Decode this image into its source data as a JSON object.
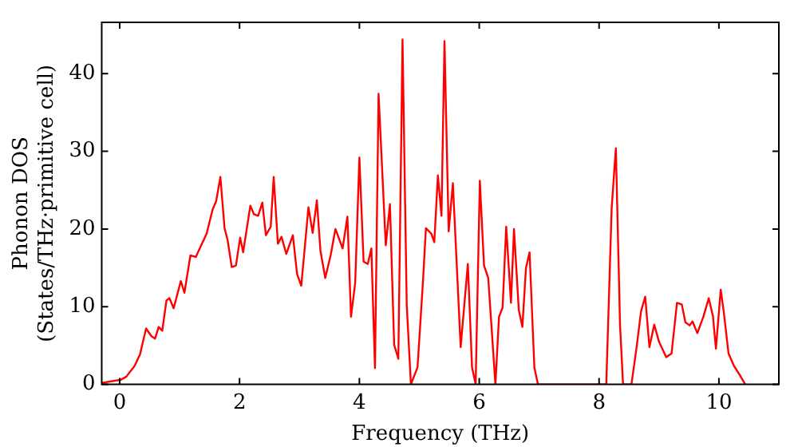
{
  "chart_data": {
    "type": "line",
    "xlabel": "Frequency (THz)",
    "ylabel": "Phonon DOS\n(States/THz·primitive cell)",
    "xlim": [
      -0.3,
      11.0
    ],
    "ylim": [
      0,
      46.6
    ],
    "xticks": [
      0,
      2,
      4,
      6,
      8,
      10
    ],
    "yticks": [
      0,
      10,
      20,
      30,
      40
    ],
    "grid": false,
    "legend": false,
    "marker": "none",
    "line_style": "solid",
    "series": [
      {
        "color": "#ff0000",
        "x": [
          -0.3,
          0.02,
          0.11,
          0.25,
          0.34,
          0.44,
          0.53,
          0.59,
          0.65,
          0.71,
          0.78,
          0.83,
          0.9,
          1.02,
          1.08,
          1.18,
          1.27,
          1.36,
          1.45,
          1.55,
          1.61,
          1.68,
          1.75,
          1.8,
          1.87,
          1.94,
          2.01,
          2.06,
          2.18,
          2.24,
          2.31,
          2.38,
          2.44,
          2.52,
          2.57,
          2.64,
          2.7,
          2.78,
          2.89,
          2.96,
          3.03,
          3.15,
          3.22,
          3.29,
          3.35,
          3.43,
          3.52,
          3.6,
          3.72,
          3.8,
          3.86,
          3.93,
          4.0,
          4.07,
          4.14,
          4.2,
          4.26,
          4.32,
          4.44,
          4.51,
          4.58,
          4.65,
          4.72,
          4.79,
          4.86,
          4.97,
          5.06,
          5.11,
          5.2,
          5.25,
          5.31,
          5.37,
          5.42,
          5.49,
          5.56,
          5.69,
          5.81,
          5.88,
          5.94,
          6.01,
          6.08,
          6.15,
          6.27,
          6.33,
          6.39,
          6.45,
          6.53,
          6.58,
          6.66,
          6.72,
          6.78,
          6.84,
          6.92,
          6.98,
          8.12,
          8.21,
          8.28,
          8.35,
          8.4,
          8.54,
          8.63,
          8.7,
          8.77,
          8.84,
          8.92,
          9.0,
          9.12,
          9.21,
          9.3,
          9.38,
          9.44,
          9.51,
          9.56,
          9.64,
          9.74,
          9.83,
          9.9,
          9.95,
          10.03,
          10.08,
          10.16,
          10.25,
          10.34,
          10.44
        ],
        "values": [
          0.2,
          0.6,
          1,
          2.4,
          3.9,
          7.2,
          6.2,
          5.9,
          7.4,
          6.9,
          10.8,
          11.1,
          9.8,
          13.3,
          11.8,
          16.6,
          16.4,
          17.9,
          19.4,
          22.5,
          23.6,
          26.7,
          20.1,
          18.6,
          15.1,
          15.3,
          18.9,
          17,
          23,
          21.9,
          21.7,
          23.4,
          19.2,
          20.3,
          26.7,
          18.1,
          19,
          16.8,
          19.2,
          14.2,
          12.7,
          22.8,
          19.5,
          23.7,
          17.2,
          13.7,
          16.6,
          20,
          17.5,
          21.6,
          8.7,
          13.1,
          29.2,
          15.8,
          15.5,
          17.5,
          2.1,
          37.4,
          17.9,
          23.2,
          5.1,
          3.3,
          44.4,
          10.2,
          0,
          2.2,
          13.1,
          20.1,
          19.4,
          18.3,
          26.9,
          21.7,
          44.2,
          19.7,
          25.9,
          4.8,
          15.5,
          2.2,
          0,
          26.2,
          15.3,
          13.7,
          0,
          8.7,
          9.9,
          20.3,
          10.5,
          20,
          9.6,
          7.4,
          15,
          17,
          2.2,
          0,
          0,
          22.7,
          30.4,
          7.6,
          0,
          0,
          5,
          9.4,
          11.3,
          4.8,
          7.7,
          5.5,
          3.5,
          4,
          10.5,
          10.3,
          8,
          7.6,
          8.1,
          6.6,
          8.7,
          11.1,
          8.8,
          4.6,
          12.2,
          9.4,
          4,
          2.4,
          1.3,
          0
        ]
      }
    ]
  }
}
